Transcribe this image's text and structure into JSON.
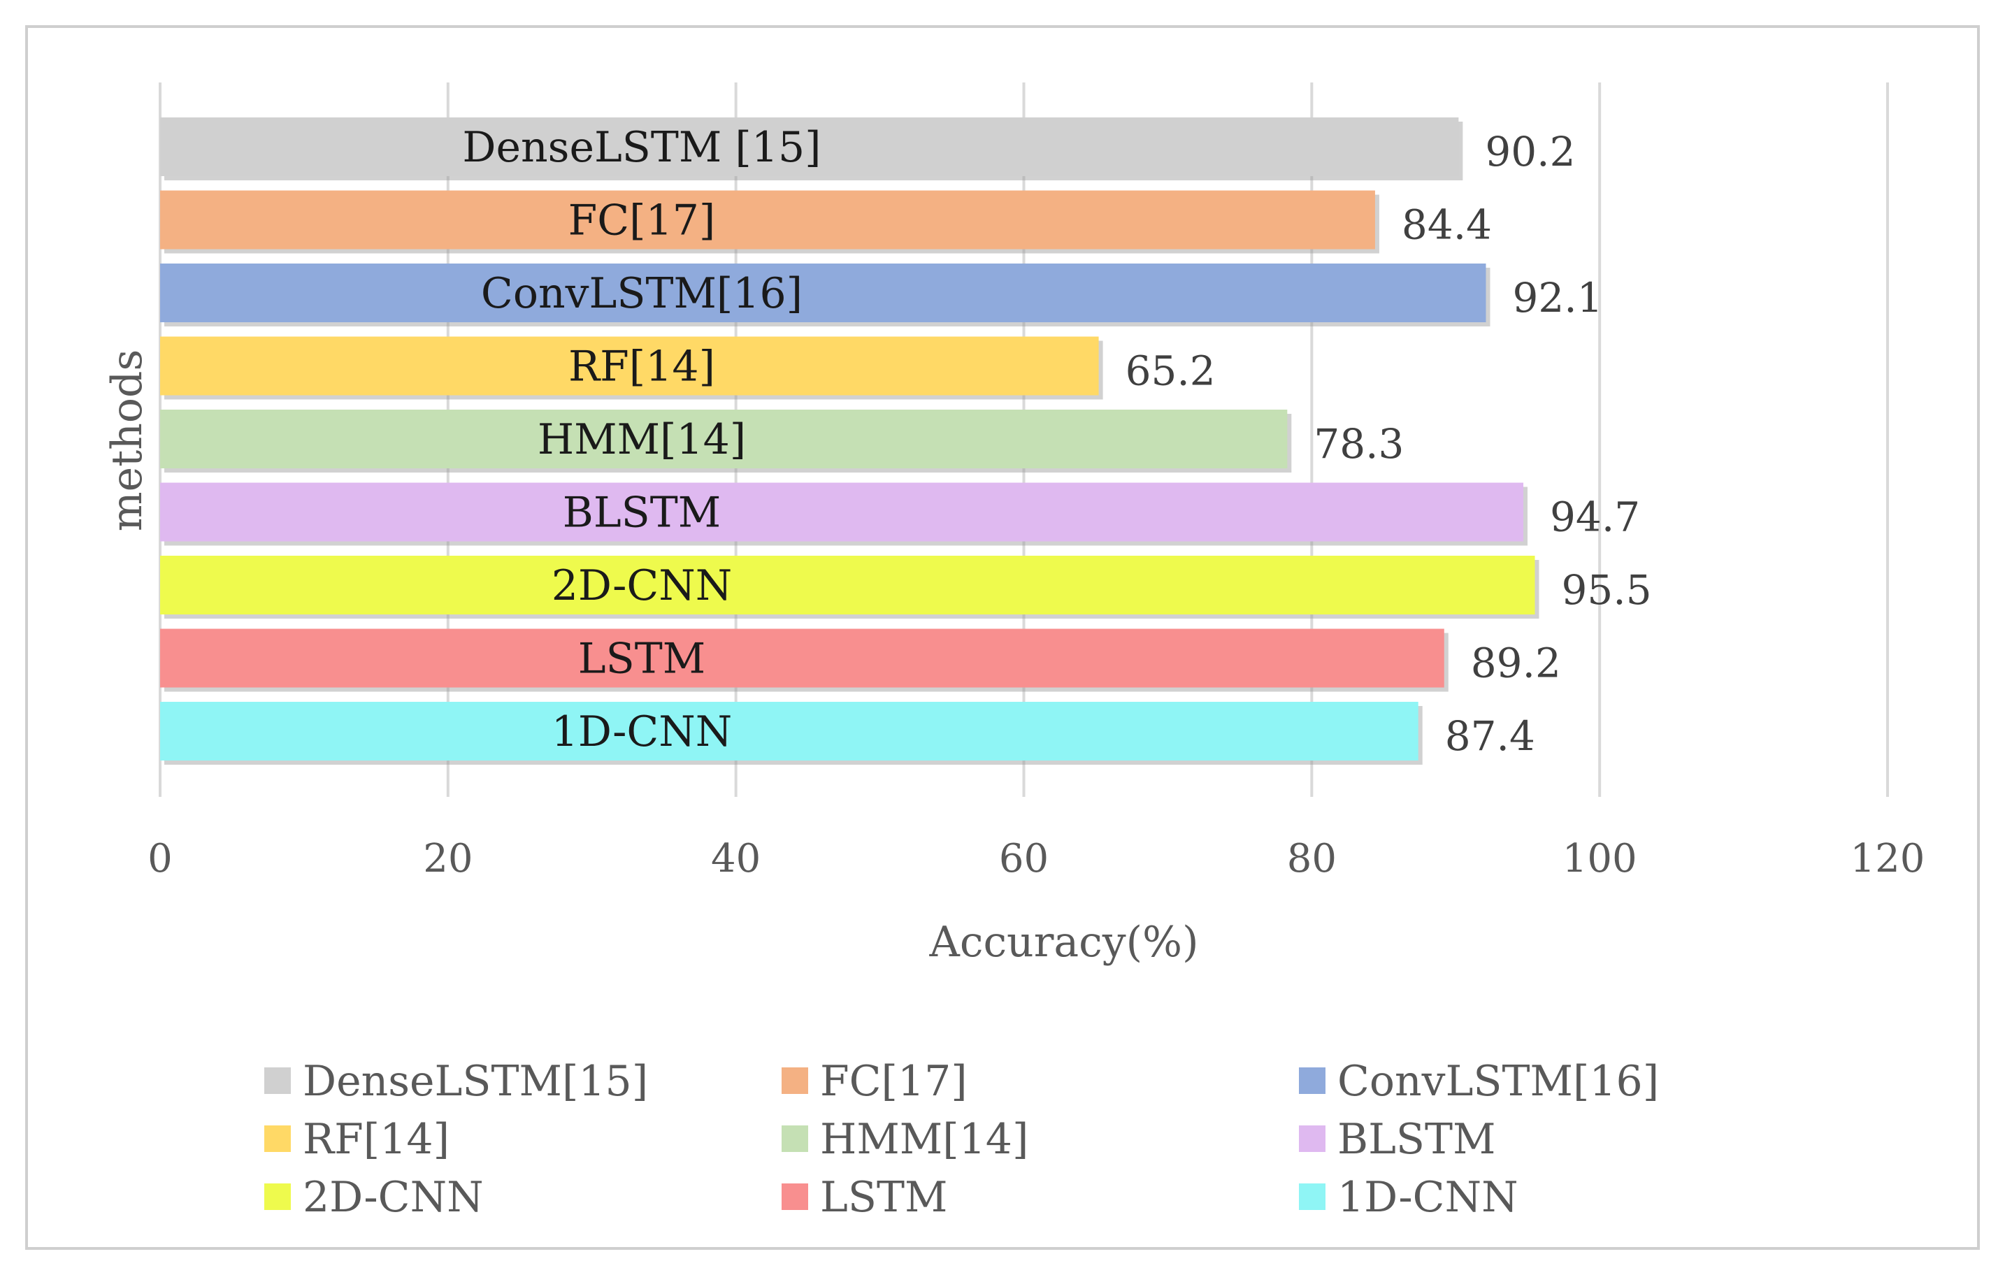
{
  "chart_data": {
    "type": "bar",
    "orientation": "horizontal",
    "categories": [
      "DenseLSTM [15]",
      "FC[17]",
      "ConvLSTM[16]",
      "RF[14]",
      "HMM[14]",
      "BLSTM",
      "2D-CNN",
      "LSTM",
      "1D-CNN"
    ],
    "values": [
      90.2,
      84.4,
      92.1,
      65.2,
      78.3,
      94.7,
      95.5,
      89.2,
      87.4
    ],
    "value_labels": [
      "90.2",
      "84.4",
      "92.1",
      "65.2",
      "78.3",
      "94.7",
      "95.5",
      "89.2",
      "87.4"
    ],
    "colors": [
      "#d0d0d0",
      "#f4b183",
      "#8faadc",
      "#ffd966",
      "#c5e0b4",
      "#dfb9f0",
      "#eefa4d",
      "#f88f8f",
      "#8ff5f5"
    ],
    "title": "",
    "xlabel": "Accuracy(%)",
    "ylabel": "methods",
    "xlim": [
      0,
      120
    ],
    "xticks": [
      0,
      20,
      40,
      60,
      80,
      100,
      120
    ],
    "xtick_labels": [
      "0",
      "20",
      "40",
      "60",
      "80",
      "100",
      "120"
    ],
    "grid": "vertical",
    "legend_position": "bottom",
    "legend": [
      {
        "label": "DenseLSTM[15]",
        "color": "#d0d0d0"
      },
      {
        "label": "FC[17]",
        "color": "#f4b183"
      },
      {
        "label": "ConvLSTM[16]",
        "color": "#8faadc"
      },
      {
        "label": "RF[14]",
        "color": "#ffd966"
      },
      {
        "label": "HMM[14]",
        "color": "#c5e0b4"
      },
      {
        "label": "BLSTM",
        "color": "#dfb9f0"
      },
      {
        "label": "2D-CNN",
        "color": "#eefa4d"
      },
      {
        "label": "LSTM",
        "color": "#f88f8f"
      },
      {
        "label": "1D-CNN",
        "color": "#8ff5f5"
      }
    ]
  }
}
